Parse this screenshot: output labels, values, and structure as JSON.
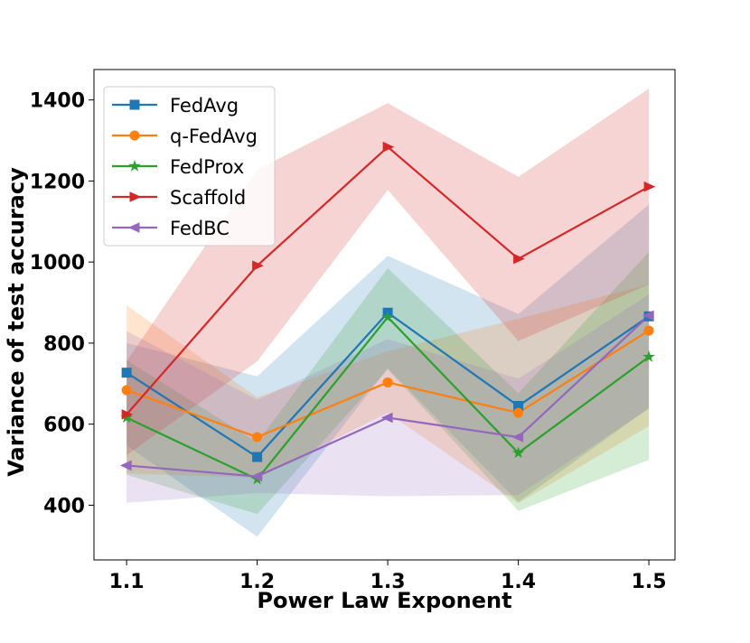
{
  "chart_data": {
    "type": "line",
    "xlabel": "Power Law Exponent",
    "ylabel": "Variance of test accuracy",
    "x": [
      1.1,
      1.2,
      1.3,
      1.4,
      1.5
    ],
    "x_tick_labels": [
      "1.1",
      "1.2",
      "1.3",
      "1.4",
      "1.5"
    ],
    "xlim": [
      1.075,
      1.52
    ],
    "ylim": [
      265,
      1475
    ],
    "y_ticks": [
      400,
      600,
      800,
      1000,
      1200,
      1400
    ],
    "grid": false,
    "legend_position": "top-left",
    "series": [
      {
        "name": "FedAvg",
        "color": "#1f77b4",
        "marker": "square",
        "values": [
          727,
          519,
          875,
          645,
          866
        ],
        "lower": [
          548,
          322,
          738,
          408,
          640
        ],
        "upper": [
          800,
          718,
          1015,
          872,
          1142
        ]
      },
      {
        "name": "q-FedAvg",
        "color": "#ff7f0e",
        "marker": "circle",
        "values": [
          684,
          568,
          703,
          628,
          831
        ],
        "lower": [
          478,
          468,
          628,
          405,
          595
        ],
        "upper": [
          893,
          666,
          780,
          860,
          945
        ]
      },
      {
        "name": "FedProx",
        "color": "#2ca02c",
        "marker": "star",
        "values": [
          616,
          464,
          864,
          529,
          766
        ],
        "lower": [
          475,
          378,
          735,
          386,
          512
        ],
        "upper": [
          758,
          555,
          985,
          676,
          1025
        ]
      },
      {
        "name": "Scaffold",
        "color": "#d62728",
        "marker": "triangle-right",
        "values": [
          624,
          991,
          1284,
          1008,
          1186
        ],
        "lower": [
          523,
          755,
          1178,
          805,
          945
        ],
        "upper": [
          755,
          1228,
          1392,
          1210,
          1428
        ]
      },
      {
        "name": "FedBC",
        "color": "#9467bd",
        "marker": "triangle-left",
        "values": [
          498,
          471,
          616,
          568,
          868
        ],
        "lower": [
          406,
          430,
          422,
          425,
          638
        ],
        "upper": [
          830,
          660,
          810,
          712,
          920
        ]
      }
    ]
  }
}
